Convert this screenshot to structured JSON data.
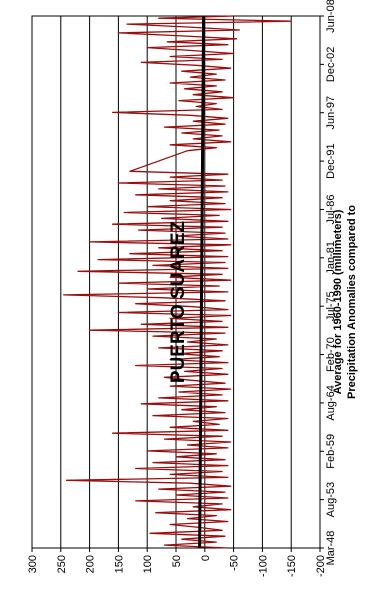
{
  "chart_data": {
    "type": "line",
    "title": "PUERTO SUAREZ",
    "ylabel_line1": "Precipitation Anomalies compared to",
    "ylabel_line2": "Average for 1960-1990 (millimeters)",
    "xlabel": "",
    "x_tick_labels": [
      "Mar-48",
      "Aug-53",
      "Feb-59",
      "Aug-64",
      "Feb-70",
      "Jul-75",
      "Jan-81",
      "Jul-86",
      "Dec-91",
      "Jun-97",
      "Dec-02",
      "Jun-08"
    ],
    "y_ticks": [
      300,
      250,
      200,
      150,
      100,
      50,
      0,
      -50,
      -100,
      -150,
      -200
    ],
    "ylim": [
      -200,
      300
    ],
    "grid": true,
    "series_color": "#9b0e0e",
    "trend_color": "#000000",
    "x_range": [
      "1948-03",
      "2008-06"
    ],
    "series": [
      {
        "name": "",
        "style": "line",
        "x": [
          "1948-03",
          "1948-07",
          "1948-11",
          "1949-03",
          "1949-07",
          "1949-11",
          "1950-03",
          "1950-07",
          "1950-11",
          "1951-03",
          "1951-07",
          "1951-11",
          "1952-03",
          "1952-07",
          "1952-11",
          "1953-03",
          "1953-07",
          "1953-11",
          "1954-03",
          "1954-07",
          "1954-11",
          "1955-03",
          "1955-07",
          "1955-11",
          "1956-03",
          "1956-07",
          "1956-11",
          "1957-03",
          "1957-07",
          "1957-11",
          "1958-03",
          "1958-07",
          "1958-11",
          "1959-03",
          "1959-07",
          "1959-11",
          "1960-03",
          "1960-07",
          "1960-11",
          "1961-03",
          "1961-07",
          "1961-11",
          "1962-03",
          "1962-07",
          "1962-11",
          "1963-03",
          "1963-07",
          "1963-11",
          "1964-03",
          "1964-07",
          "1964-11",
          "1965-03",
          "1965-07",
          "1965-11",
          "1966-03",
          "1966-07",
          "1966-11",
          "1967-03",
          "1967-07",
          "1967-11",
          "1968-03",
          "1968-07",
          "1968-11",
          "1969-03",
          "1969-07",
          "1969-11",
          "1970-03",
          "1970-07",
          "1970-11",
          "1971-03",
          "1971-07",
          "1971-11",
          "1972-03",
          "1972-07",
          "1972-11",
          "1973-03",
          "1973-07",
          "1973-11",
          "1974-03",
          "1974-07",
          "1974-11",
          "1975-03",
          "1975-07",
          "1975-11",
          "1976-03",
          "1976-07",
          "1976-11",
          "1977-03",
          "1977-07",
          "1977-11",
          "1978-03",
          "1978-07",
          "1978-11",
          "1979-03",
          "1979-07",
          "1979-11",
          "1980-03",
          "1980-07",
          "1980-11",
          "1981-03",
          "1981-07",
          "1981-11",
          "1982-03",
          "1982-07",
          "1982-11",
          "1983-03",
          "1983-07",
          "1983-11",
          "1984-03",
          "1984-07",
          "1984-11",
          "1985-03",
          "1985-07",
          "1985-11",
          "1986-03",
          "1986-07",
          "1986-11",
          "1987-03",
          "1987-07",
          "1987-11",
          "1988-03",
          "1988-07",
          "1988-11",
          "1989-03",
          "1989-07",
          "1989-11",
          "1990-03",
          "1990-07",
          "1990-11",
          "1993-03",
          "1993-07",
          "1993-11",
          "1994-03",
          "1994-07",
          "1994-11",
          "1995-03",
          "1995-07",
          "1995-11",
          "1996-03",
          "1996-07",
          "1996-11",
          "1997-03",
          "1997-07",
          "1997-11",
          "1998-03",
          "1998-07",
          "1998-11",
          "1999-03",
          "1999-07",
          "1999-11",
          "2000-03",
          "2000-07",
          "2000-11",
          "2001-03",
          "2001-07",
          "2001-11",
          "2002-03",
          "2002-07",
          "2002-11",
          "2003-03",
          "2003-07",
          "2003-11",
          "2004-03",
          "2004-07",
          "2004-11",
          "2005-03",
          "2005-07",
          "2005-11",
          "2006-03",
          "2006-07",
          "2006-11",
          "2007-03",
          "2007-07",
          "2007-11",
          "2008-03",
          "2008-06"
        ],
        "values": [
          -40,
          70,
          -20,
          40,
          -35,
          95,
          -30,
          10,
          60,
          -40,
          30,
          -20,
          85,
          -45,
          20,
          -30,
          120,
          -40,
          50,
          -35,
          80,
          -45,
          25,
          240,
          -40,
          60,
          -30,
          120,
          -40,
          90,
          -35,
          50,
          -20,
          100,
          -40,
          30,
          -45,
          70,
          -30,
          160,
          -40,
          60,
          -25,
          20,
          -40,
          90,
          -35,
          40,
          -20,
          110,
          -40,
          80,
          -30,
          45,
          -45,
          60,
          -35,
          25,
          70,
          -40,
          35,
          -30,
          120,
          -40,
          60,
          -25,
          45,
          -30,
          80,
          -40,
          30,
          -20,
          90,
          -35,
          200,
          -40,
          110,
          -30,
          60,
          -45,
          150,
          -40,
          20,
          120,
          -35,
          70,
          245,
          -40,
          100,
          -25,
          150,
          -45,
          60,
          -30,
          220,
          -40,
          90,
          -35,
          185,
          -40,
          130,
          -30,
          80,
          -45,
          200,
          -40,
          50,
          -35,
          115,
          -30,
          160,
          -40,
          75,
          -25,
          140,
          -45,
          100,
          -35,
          60,
          -30,
          120,
          -40,
          80,
          -35,
          150,
          -30,
          60,
          -40,
          130,
          30,
          -20,
          60,
          -45,
          20,
          -30,
          40,
          -25,
          70,
          -35,
          20,
          -40,
          25,
          160,
          -30,
          15,
          -20,
          45,
          -50,
          20,
          -30,
          35,
          -20,
          60,
          -35,
          25,
          -20,
          40,
          -45,
          15,
          110,
          -30,
          60,
          -50,
          20,
          100,
          -40,
          65,
          -55,
          40,
          150,
          -60,
          30,
          135,
          -150,
          80,
          -50
        ]
      },
      {
        "name": "",
        "style": "trend",
        "x": [
          "1948-03",
          "2008-06"
        ],
        "values": [
          9,
          2
        ]
      }
    ]
  }
}
